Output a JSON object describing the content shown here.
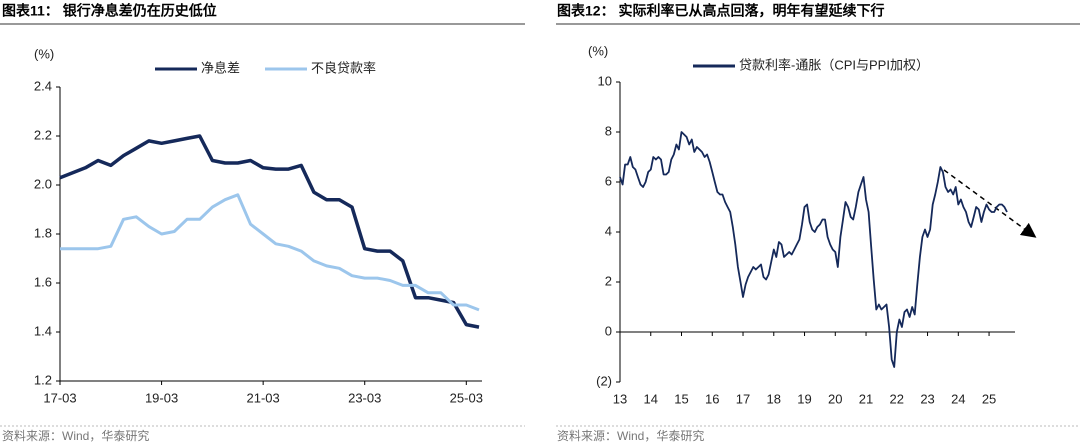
{
  "chart_data": [
    {
      "type": "line",
      "title": "图表11：  银行净息差仍在历史低位",
      "y_unit": "(%)",
      "source": "资料来源：Wind，华泰研究",
      "categories": [
        "17-03",
        null,
        null,
        null,
        null,
        null,
        null,
        null,
        "19-03",
        null,
        null,
        null,
        null,
        null,
        null,
        null,
        "21-03",
        null,
        null,
        null,
        null,
        null,
        null,
        null,
        "23-03",
        null,
        null,
        null,
        null,
        null,
        null,
        null,
        "25-03",
        null
      ],
      "series": [
        {
          "name": "净息差",
          "color": "#15295a",
          "values": [
            2.03,
            2.05,
            2.07,
            2.1,
            2.08,
            2.12,
            2.15,
            2.18,
            2.17,
            2.18,
            2.19,
            2.2,
            2.1,
            2.09,
            2.09,
            2.1,
            2.07,
            2.065,
            2.065,
            2.08,
            1.97,
            1.94,
            1.94,
            1.91,
            1.74,
            1.73,
            1.73,
            1.69,
            1.54,
            1.54,
            1.53,
            1.52,
            1.43,
            1.42
          ]
        },
        {
          "name": "不良贷款率",
          "color": "#9cc6ec",
          "values": [
            1.74,
            1.74,
            1.74,
            1.74,
            1.75,
            1.86,
            1.87,
            1.83,
            1.8,
            1.81,
            1.86,
            1.86,
            1.91,
            1.94,
            1.96,
            1.84,
            1.8,
            1.76,
            1.75,
            1.73,
            1.69,
            1.67,
            1.66,
            1.63,
            1.62,
            1.62,
            1.61,
            1.59,
            1.59,
            1.56,
            1.56,
            1.51,
            1.51,
            1.49
          ]
        }
      ],
      "ylim": [
        1.2,
        2.4
      ],
      "yticks": [
        1.2,
        1.4,
        1.6,
        1.8,
        {
          "value": 2,
          "label": "2.0"
        },
        2.2,
        2.4
      ],
      "legend": "top"
    },
    {
      "type": "line",
      "title": "图表12：  实际利率已从高点回落，明年有望延续下行",
      "y_unit": "(%)",
      "source": "资料来源：Wind，华泰研究",
      "categories": [
        "13",
        null,
        null,
        null,
        null,
        null,
        null,
        null,
        null,
        null,
        null,
        null,
        "14",
        null,
        null,
        null,
        null,
        null,
        null,
        null,
        null,
        null,
        null,
        null,
        "15",
        null,
        null,
        null,
        null,
        null,
        null,
        null,
        null,
        null,
        null,
        null,
        "16",
        null,
        null,
        null,
        null,
        null,
        null,
        null,
        null,
        null,
        null,
        null,
        "17",
        null,
        null,
        null,
        null,
        null,
        null,
        null,
        null,
        null,
        null,
        null,
        "18",
        null,
        null,
        null,
        null,
        null,
        null,
        null,
        null,
        null,
        null,
        null,
        "19",
        null,
        null,
        null,
        null,
        null,
        null,
        null,
        null,
        null,
        null,
        null,
        "20",
        null,
        null,
        null,
        null,
        null,
        null,
        null,
        null,
        null,
        null,
        null,
        "21",
        null,
        null,
        null,
        null,
        null,
        null,
        null,
        null,
        null,
        null,
        null,
        "22",
        null,
        null,
        null,
        null,
        null,
        null,
        null,
        null,
        null,
        null,
        null,
        "23",
        null,
        null,
        null,
        null,
        null,
        null,
        null,
        null,
        null,
        null,
        null,
        "24",
        null,
        null,
        null,
        null,
        null,
        null,
        null,
        null,
        null,
        null,
        null,
        "25",
        null,
        null,
        null,
        null,
        null,
        null,
        null
      ],
      "series": [
        {
          "name": "贷款利率-通胀（CPI与PPI加权）",
          "color": "#15295a",
          "values": [
            6.2,
            5.9,
            6.7,
            6.7,
            7.0,
            6.6,
            6.5,
            6.2,
            5.9,
            5.8,
            6.0,
            6.4,
            6.5,
            7.0,
            6.9,
            7.0,
            6.9,
            6.3,
            6.3,
            6.4,
            6.9,
            7.1,
            7.5,
            7.3,
            8.0,
            7.9,
            7.8,
            7.5,
            7.7,
            7.2,
            7.4,
            7.3,
            7.2,
            7.0,
            7.1,
            6.8,
            6.4,
            6.0,
            5.6,
            5.5,
            5.5,
            5.2,
            5.0,
            4.8,
            4.2,
            3.5,
            2.6,
            2.0,
            1.4,
            1.9,
            2.2,
            2.4,
            2.6,
            2.5,
            2.6,
            2.7,
            2.2,
            2.1,
            2.3,
            2.8,
            3.3,
            3.0,
            3.6,
            3.5,
            3.0,
            3.1,
            3.2,
            3.1,
            3.3,
            3.5,
            3.7,
            4.3,
            5.0,
            5.1,
            4.4,
            4.1,
            4.0,
            4.2,
            4.3,
            4.5,
            4.5,
            3.8,
            3.5,
            3.3,
            3.2,
            2.6,
            3.8,
            4.5,
            5.2,
            5.0,
            4.6,
            4.5,
            5.0,
            5.6,
            5.9,
            6.2,
            5.3,
            4.8,
            3.4,
            2.1,
            0.9,
            1.1,
            0.9,
            1.0,
            1.1,
            0.2,
            -1.1,
            -1.4,
            0.0,
            0.5,
            0.2,
            0.8,
            0.9,
            0.6,
            1.0,
            0.7,
            1.9,
            3.0,
            3.8,
            4.1,
            3.8,
            4.1,
            5.1,
            5.5,
            6.0,
            6.6,
            6.4,
            5.8,
            5.6,
            5.7,
            5.5,
            5.8,
            5.1,
            5.3,
            5.0,
            4.8,
            4.4,
            4.2,
            4.6,
            5.0,
            4.9,
            4.4,
            4.8,
            5.1,
            4.9,
            4.8,
            4.8,
            5.0,
            5.1,
            5.1,
            5.0,
            4.8
          ]
        }
      ],
      "ylim": [
        -2,
        10
      ],
      "yticks": [
        {
          "value": -2,
          "label": "(2)"
        },
        0,
        2,
        4,
        6,
        8,
        10
      ],
      "legend": "top"
    }
  ]
}
